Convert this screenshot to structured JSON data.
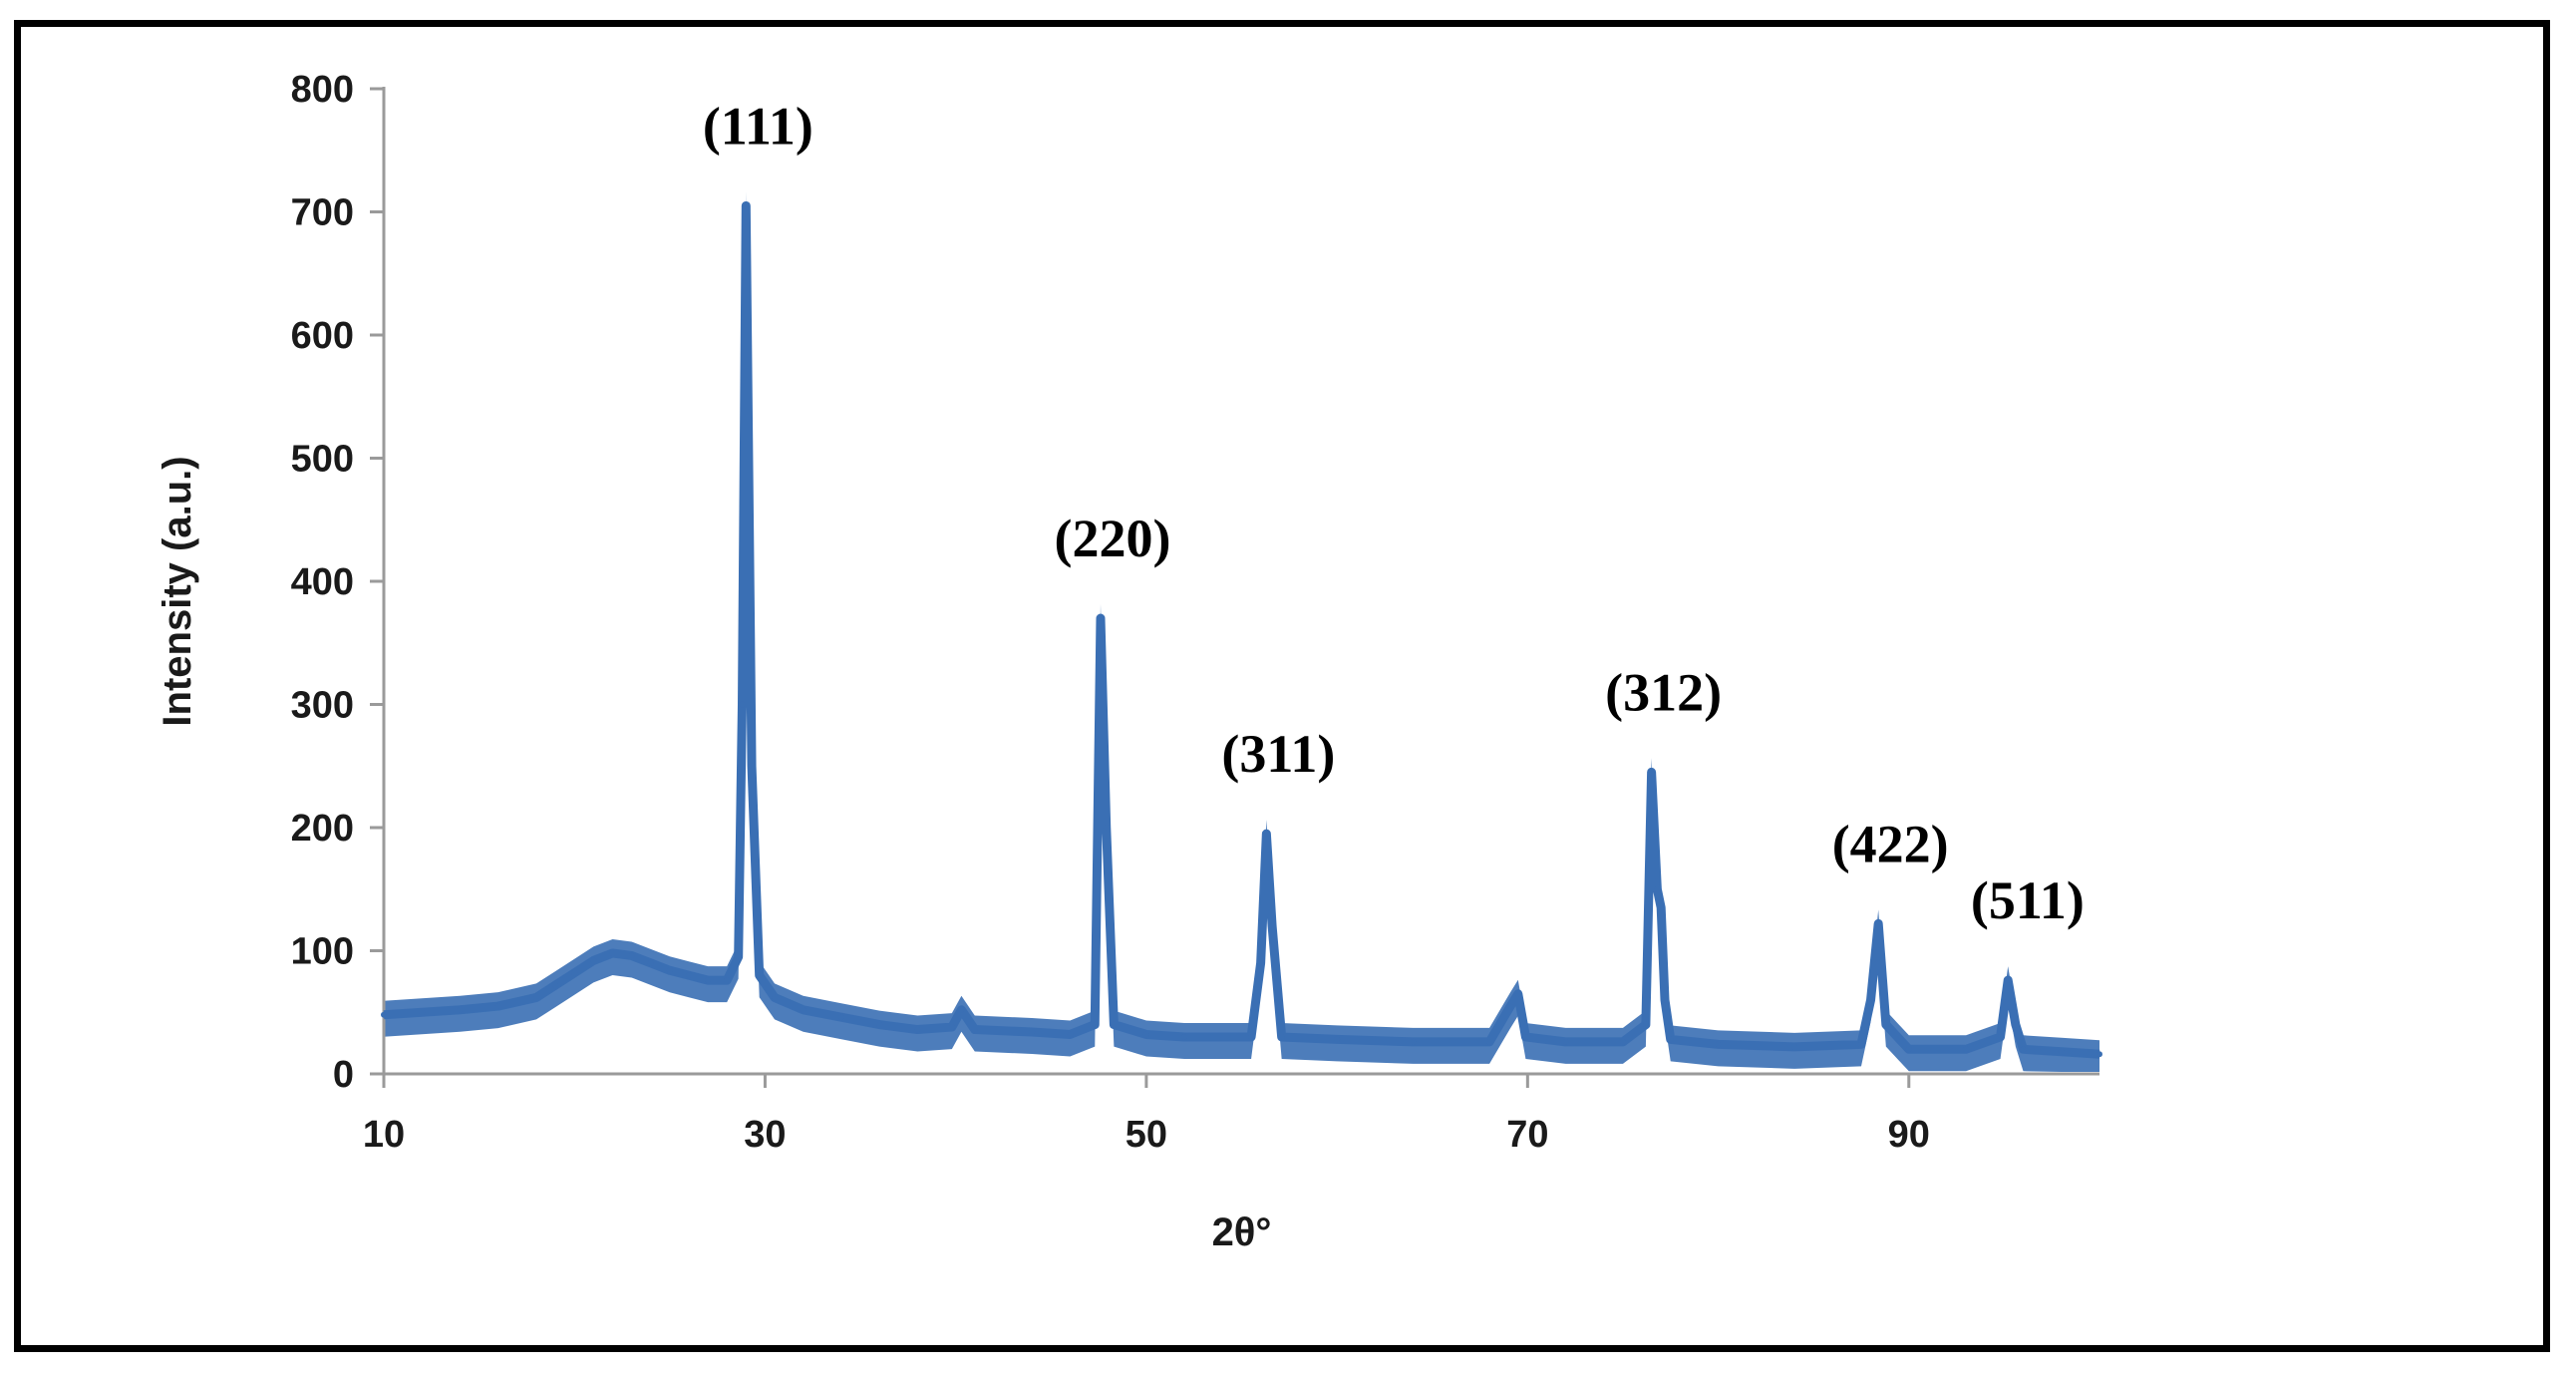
{
  "chart_data": {
    "type": "line",
    "title": "",
    "xlabel": "2θ°",
    "ylabel": "Intensity (a.u.)",
    "xlim": [
      10,
      100
    ],
    "ylim": [
      0,
      800
    ],
    "x_ticks": [
      "10",
      "30",
      "50",
      "70",
      "90"
    ],
    "y_ticks": [
      "0",
      "100",
      "200",
      "300",
      "400",
      "500",
      "600",
      "700",
      "800"
    ],
    "grid": false,
    "legend": "none",
    "series_color": "#3a6fb4",
    "series": [
      {
        "x": [
          10,
          12,
          14,
          16,
          18,
          19,
          20,
          21,
          22,
          23,
          24,
          25,
          26,
          27,
          28,
          28.6,
          28.8,
          29.0,
          29.3,
          29.7,
          30.5,
          32,
          34,
          36,
          38,
          39.8,
          40.3,
          41,
          44,
          46,
          47.3,
          47.6,
          47.9,
          48.3,
          50,
          52,
          55.5,
          56.0,
          56.3,
          56.6,
          57.1,
          60,
          64,
          68,
          69.1,
          69.5,
          69.9,
          72,
          75,
          76.2,
          76.5,
          76.8,
          77.0,
          77.2,
          77.5,
          80,
          84,
          87.5,
          88.0,
          88.4,
          88.8,
          90,
          93,
          94.8,
          95.2,
          95.6,
          96,
          98,
          100
        ],
        "y": [
          48,
          50,
          52,
          55,
          62,
          72,
          82,
          92,
          98,
          96,
          90,
          84,
          80,
          76,
          76,
          95,
          300,
          705,
          250,
          80,
          62,
          52,
          46,
          40,
          36,
          38,
          52,
          36,
          34,
          32,
          40,
          370,
          200,
          40,
          32,
          30,
          30,
          90,
          195,
          120,
          30,
          28,
          26,
          26,
          55,
          65,
          30,
          26,
          26,
          40,
          245,
          150,
          135,
          60,
          28,
          24,
          22,
          24,
          60,
          122,
          40,
          20,
          20,
          30,
          76,
          40,
          20,
          18,
          16
        ]
      }
    ],
    "annotations": [
      {
        "text": "(111)",
        "x": 29.0,
        "y": 705
      },
      {
        "text": "(220)",
        "x": 47.6,
        "y": 370
      },
      {
        "text": "(311)",
        "x": 56.3,
        "y": 195
      },
      {
        "text": "(312)",
        "x": 76.5,
        "y": 245
      },
      {
        "text": "(422)",
        "x": 88.4,
        "y": 122
      },
      {
        "text": "(511)",
        "x": 95.6,
        "y": 76
      }
    ]
  }
}
